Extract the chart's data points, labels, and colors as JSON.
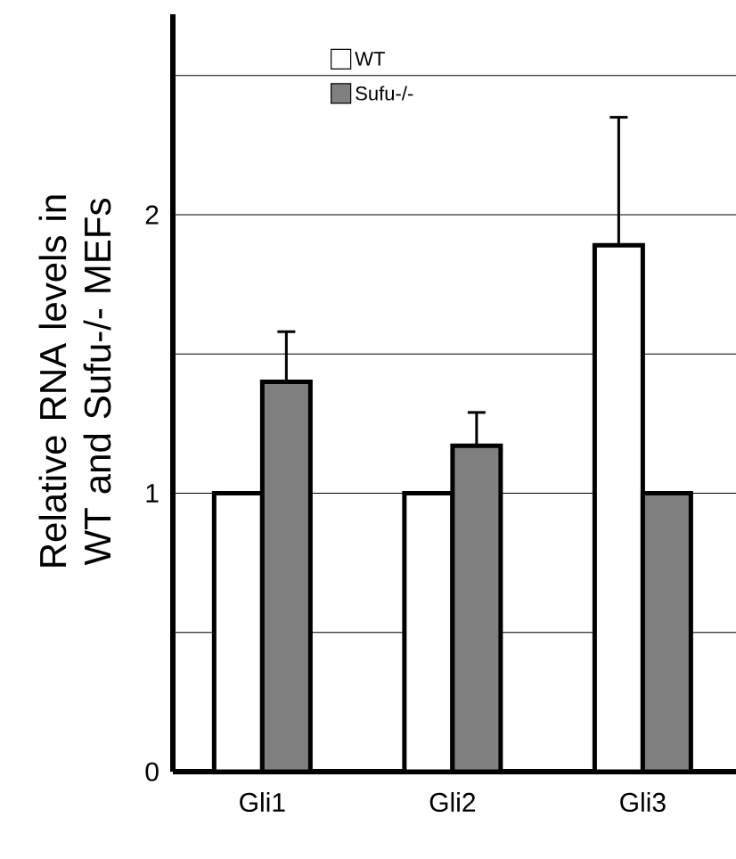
{
  "chart_data": {
    "type": "bar",
    "ylabel": "Relative RNA levels in WT and Sufu-/- MEFs",
    "categories": [
      "Gli1",
      "Gli2",
      "Gli3"
    ],
    "series": [
      {
        "name": "WT",
        "color": "#ffffff",
        "values": [
          1.0,
          1.0,
          1.89
        ],
        "errors": [
          null,
          null,
          [
            1.89,
            2.35
          ]
        ]
      },
      {
        "name": "Sufu-/-",
        "color": "#808080",
        "values": [
          1.4,
          1.17,
          1.0
        ],
        "errors": [
          [
            1.4,
            1.58
          ],
          [
            1.17,
            1.29
          ],
          null
        ]
      }
    ],
    "ylim": [
      0,
      2.72
    ],
    "yticks": [
      0,
      {
        "value": 0.5,
        "label": null
      },
      1,
      {
        "value": 1.5,
        "label": null
      },
      2,
      {
        "value": 2.5,
        "label": null
      }
    ],
    "grid": "y",
    "legend": "top left"
  }
}
